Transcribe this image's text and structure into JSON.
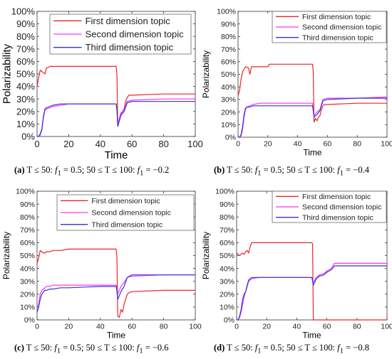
{
  "colors": {
    "first": "#e8262a",
    "second": "#ff33ff",
    "third": "#3333dd"
  },
  "chart_data": [
    {
      "id": "a",
      "type": "line",
      "caption": {
        "label": "(a)",
        "text": " T ≤ 50: ",
        "f": "f",
        "sub": "1",
        "text2": " = 0.5; 50 ≤ T ≤ 100: ",
        "f2": "f",
        "sub2": "1",
        "text3": " = −0.2"
      },
      "xlabel": "Time",
      "ylabel": "Polarizability",
      "xlim": [
        0,
        100
      ],
      "ylim": [
        0,
        100
      ],
      "xticks": [
        "0",
        "20",
        "40",
        "60",
        "80",
        "100"
      ],
      "yticks": [
        "0%",
        "10%",
        "20%",
        "30%",
        "40%",
        "50%",
        "60%",
        "70%",
        "80%",
        "90%",
        "100%"
      ],
      "legend": [
        "First dimension topic",
        "Second dimension topic",
        "Third dimension topic"
      ],
      "series": [
        {
          "name": "First dimension topic",
          "color_key": "first",
          "x": [
            0,
            1,
            2,
            3,
            4,
            5,
            6,
            7,
            8,
            10,
            20,
            30,
            40,
            50,
            50.5,
            51,
            52,
            53,
            55,
            56,
            57,
            58,
            60,
            80,
            100
          ],
          "y": [
            40,
            47,
            53,
            52,
            51,
            50,
            55,
            55,
            56,
            56,
            56,
            56,
            56,
            56,
            49,
            10,
            14,
            18,
            22,
            28,
            31,
            33,
            33,
            34,
            34
          ]
        },
        {
          "name": "Second dimension topic",
          "color_key": "second",
          "x": [
            0,
            1,
            2,
            3,
            4,
            5,
            6,
            8,
            10,
            15,
            20,
            40,
            50,
            50.5,
            51,
            53,
            55,
            57,
            60,
            80,
            100
          ],
          "y": [
            0,
            0,
            1,
            5,
            15,
            21,
            22,
            23,
            24,
            25,
            26,
            26,
            26,
            22,
            10,
            19,
            21,
            28,
            29,
            30,
            30
          ]
        },
        {
          "name": "Third dimension topic",
          "color_key": "third",
          "x": [
            0,
            1,
            2,
            3,
            4,
            5,
            6,
            8,
            10,
            15,
            20,
            40,
            50,
            50.5,
            51,
            53,
            55,
            57,
            60,
            80,
            100
          ],
          "y": [
            0,
            0,
            2,
            6,
            16,
            22,
            23,
            24,
            25,
            26,
            26,
            26,
            26,
            21,
            8,
            17,
            20,
            27,
            28,
            28,
            28
          ]
        }
      ]
    },
    {
      "id": "b",
      "type": "line",
      "caption": {
        "label": "(b)",
        "text": " T ≤ 50: ",
        "f": "f",
        "sub": "1",
        "text2": " = 0.5; 50 ≤ T ≤ 100: ",
        "f2": "f",
        "sub2": "1",
        "text3": " = −0.4"
      },
      "xlabel": "Time",
      "ylabel": "Polarizability",
      "xlim": [
        0,
        100
      ],
      "ylim": [
        0,
        100
      ],
      "xticks": [
        "0",
        "20",
        "40",
        "60",
        "80",
        "100"
      ],
      "yticks": [
        "0%",
        "10%",
        "20%",
        "30%",
        "40%",
        "50%",
        "60%",
        "70%",
        "80%",
        "90%",
        "100%"
      ],
      "legend": [
        "First dimension topic",
        "Second dimension topic",
        "Third dimension topic"
      ],
      "series": [
        {
          "name": "First dimension topic",
          "color_key": "first",
          "x": [
            0,
            1,
            2,
            3,
            4,
            5,
            7,
            8,
            9,
            10,
            15,
            20,
            21,
            22,
            30,
            40,
            50,
            50.5,
            51,
            52,
            53,
            54,
            55,
            56,
            57,
            58,
            60,
            80,
            100
          ],
          "y": [
            33,
            37,
            46,
            52,
            54,
            56,
            55,
            50,
            56,
            56,
            56,
            56,
            58,
            58,
            58,
            58,
            58,
            52,
            12,
            15,
            13,
            16,
            17,
            22,
            25,
            26,
            26,
            27,
            27
          ]
        },
        {
          "name": "Second dimension topic",
          "color_key": "second",
          "x": [
            0,
            1,
            2,
            3,
            4,
            5,
            6,
            8,
            10,
            15,
            20,
            40,
            50,
            50.5,
            51,
            53,
            55,
            57,
            60,
            80,
            100
          ],
          "y": [
            0,
            0,
            1,
            6,
            16,
            22,
            24,
            25,
            26,
            27,
            27,
            27,
            27,
            23,
            17,
            20,
            22,
            30,
            31,
            31,
            32
          ]
        },
        {
          "name": "Third dimension topic",
          "color_key": "third",
          "x": [
            0,
            1,
            2,
            3,
            4,
            5,
            6,
            8,
            10,
            15,
            20,
            40,
            50,
            50.5,
            51,
            53,
            55,
            57,
            60,
            80,
            100
          ],
          "y": [
            0,
            0,
            2,
            8,
            18,
            23,
            24,
            24,
            25,
            25,
            25,
            25,
            25,
            21,
            16,
            18,
            21,
            29,
            30,
            31,
            31
          ]
        }
      ]
    },
    {
      "id": "c",
      "type": "line",
      "caption": {
        "label": "(c)",
        "text": " T ≤ 50: ",
        "f": "f",
        "sub": "1",
        "text2": " = 0.5; 50 ≤ T ≤ 100: ",
        "f2": "f",
        "sub2": "1",
        "text3": " = −0.6"
      },
      "xlabel": "Time",
      "ylabel": "Polarizability",
      "xlim": [
        0,
        100
      ],
      "ylim": [
        0,
        100
      ],
      "xticks": [
        "0",
        "20",
        "40",
        "60",
        "80",
        "100"
      ],
      "yticks": [
        "0%",
        "10%",
        "20%",
        "30%",
        "40%",
        "50%",
        "60%",
        "70%",
        "80%",
        "90%",
        "100%"
      ],
      "legend": [
        "First dimension topic",
        "Second dimension topic",
        "Third dimension topic"
      ],
      "series": [
        {
          "name": "First dimension topic",
          "color_key": "first",
          "x": [
            0,
            1,
            2,
            3,
            4,
            5,
            6,
            8,
            10,
            15,
            20,
            30,
            40,
            50,
            50.5,
            51,
            52,
            53,
            54,
            55,
            56,
            57,
            58,
            60,
            80,
            100
          ],
          "y": [
            44,
            48,
            54,
            53,
            52,
            52,
            53,
            53,
            54,
            54,
            55,
            55,
            55,
            55,
            48,
            3,
            2,
            8,
            6,
            12,
            16,
            20,
            21,
            22,
            23,
            23
          ]
        },
        {
          "name": "Second dimension topic",
          "color_key": "second",
          "x": [
            0,
            1,
            2,
            3,
            4,
            5,
            6,
            8,
            10,
            15,
            20,
            40,
            50,
            50.5,
            51,
            53,
            55,
            57,
            60,
            80,
            100
          ],
          "y": [
            9,
            12,
            20,
            23,
            24,
            25,
            26,
            26,
            27,
            27,
            27,
            27,
            27,
            24,
            20,
            26,
            29,
            33,
            34,
            35,
            35
          ]
        },
        {
          "name": "Third dimension topic",
          "color_key": "third",
          "x": [
            0,
            1,
            2,
            3,
            4,
            5,
            6,
            8,
            10,
            15,
            20,
            40,
            50,
            50.5,
            51,
            53,
            55,
            57,
            60,
            80,
            100
          ],
          "y": [
            6,
            10,
            16,
            20,
            22,
            23,
            23,
            24,
            24,
            25,
            25,
            26,
            26,
            22,
            16,
            22,
            26,
            33,
            35,
            35,
            35
          ]
        }
      ]
    },
    {
      "id": "d",
      "type": "line",
      "caption": {
        "label": "(d)",
        "text": " T ≤ 50: ",
        "f": "f",
        "sub": "1",
        "text2": " = 0.5; 50 ≤ T ≤ 100: ",
        "f2": "f",
        "sub2": "1",
        "text3": " = −0.8"
      },
      "xlabel": "Time",
      "ylabel": "Polarizability",
      "xlim": [
        0,
        100
      ],
      "ylim": [
        0,
        100
      ],
      "xticks": [
        "0",
        "20",
        "40",
        "60",
        "80",
        "100"
      ],
      "yticks": [
        "0%",
        "10%",
        "20%",
        "30%",
        "40%",
        "50%",
        "60%",
        "70%",
        "80%",
        "90%",
        "100%"
      ],
      "legend": [
        "First dimension topic",
        "Second dimension topic",
        "Third dimension topic"
      ],
      "series": [
        {
          "name": "First dimension topic",
          "color_key": "first",
          "x": [
            0,
            1,
            2,
            3,
            4,
            5,
            6,
            7,
            8,
            9,
            10,
            20,
            30,
            40,
            50,
            50.5,
            51,
            60,
            80,
            100
          ],
          "y": [
            52,
            51,
            50,
            51,
            52,
            51,
            53,
            54,
            52,
            57,
            60,
            60,
            60,
            60,
            60,
            59,
            0,
            0,
            0,
            0
          ]
        },
        {
          "name": "Second dimension topic",
          "color_key": "second",
          "x": [
            0,
            1,
            2,
            3,
            4,
            5,
            7,
            8,
            10,
            15,
            20,
            40,
            50,
            50.5,
            51,
            53,
            55,
            58,
            60,
            63,
            65,
            80,
            100
          ],
          "y": [
            0,
            0,
            2,
            6,
            12,
            18,
            26,
            30,
            32,
            33,
            33,
            33,
            33,
            31,
            29,
            33,
            35,
            36,
            38,
            40,
            44,
            44,
            44
          ]
        },
        {
          "name": "Third dimension topic",
          "color_key": "third",
          "x": [
            0,
            1,
            2,
            3,
            4,
            5,
            6,
            7,
            8,
            10,
            15,
            20,
            40,
            50,
            50.5,
            51,
            53,
            55,
            58,
            60,
            63,
            65,
            80,
            100
          ],
          "y": [
            0,
            0,
            3,
            8,
            16,
            20,
            22,
            27,
            31,
            33,
            33,
            33,
            33,
            33,
            30,
            27,
            32,
            34,
            35,
            37,
            39,
            42,
            42,
            42
          ]
        }
      ]
    }
  ]
}
